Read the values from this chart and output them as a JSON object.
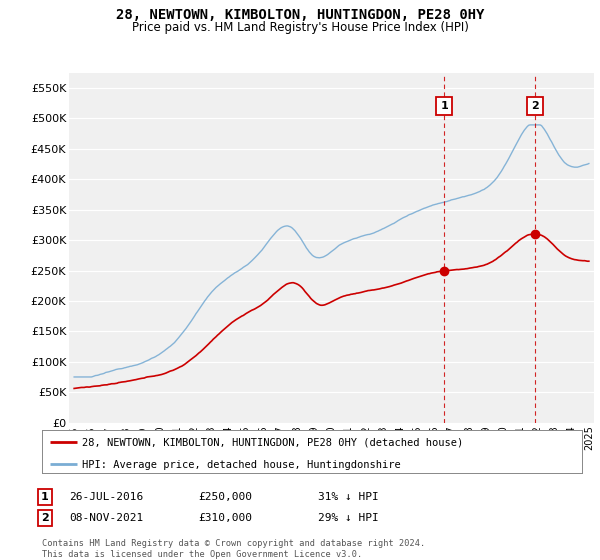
{
  "title": "28, NEWTOWN, KIMBOLTON, HUNTINGDON, PE28 0HY",
  "subtitle": "Price paid vs. HM Land Registry's House Price Index (HPI)",
  "ylabel_ticks": [
    "£0",
    "£50K",
    "£100K",
    "£150K",
    "£200K",
    "£250K",
    "£300K",
    "£350K",
    "£400K",
    "£450K",
    "£500K",
    "£550K"
  ],
  "ytick_values": [
    0,
    50000,
    100000,
    150000,
    200000,
    250000,
    300000,
    350000,
    400000,
    450000,
    500000,
    550000
  ],
  "ylim": [
    0,
    575000
  ],
  "legend_label_red": "28, NEWTOWN, KIMBOLTON, HUNTINGDON, PE28 0HY (detached house)",
  "legend_label_blue": "HPI: Average price, detached house, Huntingdonshire",
  "marker1_year": 2016.57,
  "marker1_val_red": 250000,
  "marker1_label": "1",
  "marker1_date": "26-JUL-2016",
  "marker1_price": "£250,000",
  "marker1_hpi": "31% ↓ HPI",
  "marker2_year": 2021.85,
  "marker2_val_red": 310000,
  "marker2_label": "2",
  "marker2_date": "08-NOV-2021",
  "marker2_price": "£310,000",
  "marker2_hpi": "29% ↓ HPI",
  "footnote": "Contains HM Land Registry data © Crown copyright and database right 2024.\nThis data is licensed under the Open Government Licence v3.0.",
  "red_color": "#cc0000",
  "blue_color": "#7aadd4",
  "vline_color": "#cc0000",
  "background_color": "#ffffff",
  "plot_bg_color": "#f0f0f0"
}
